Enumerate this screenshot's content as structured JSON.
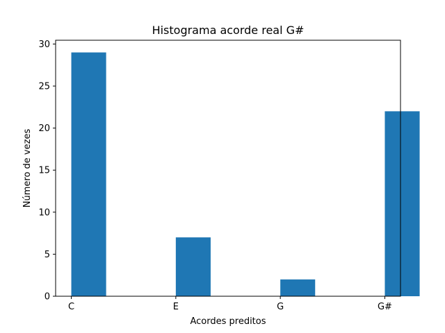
{
  "chart_data": {
    "type": "bar",
    "title": "Histograma acorde real G#",
    "xlabel": "Acordes preditos",
    "ylabel": "Número de vezes",
    "categories": [
      "C",
      "E",
      "G",
      "G#"
    ],
    "values": [
      29,
      7,
      2,
      22
    ],
    "ylim": [
      0,
      30.45
    ],
    "yticks": [
      0,
      5,
      10,
      15,
      20,
      25,
      30
    ],
    "xlim": [
      -0.15,
      3.15
    ],
    "bar_width": 0.3333,
    "grid": false,
    "bar_color": "#1f77b4"
  }
}
